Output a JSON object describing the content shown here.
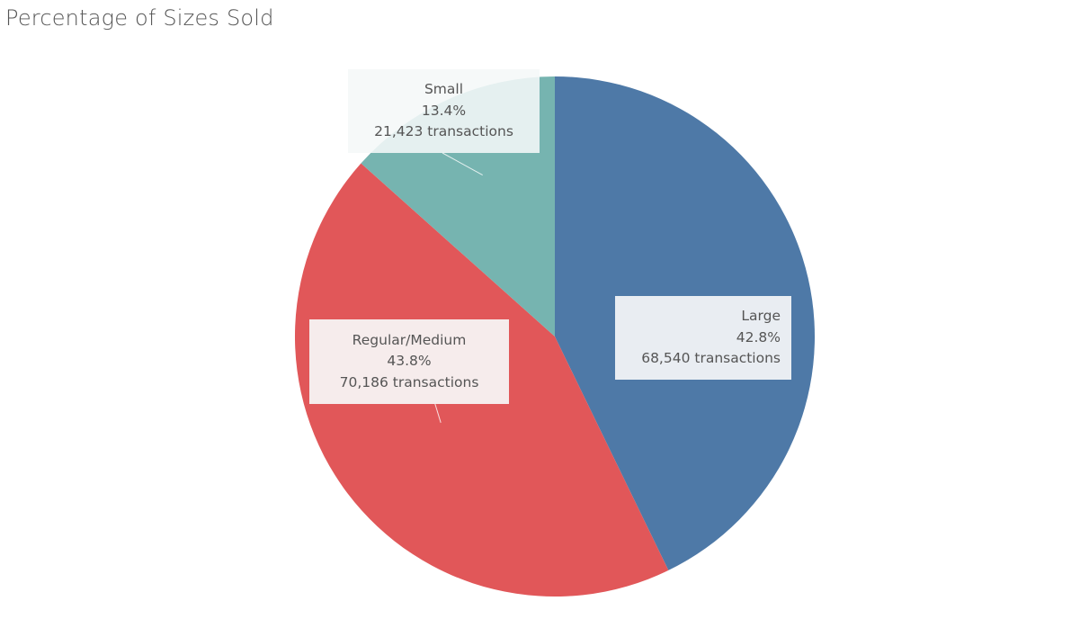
{
  "title": "Percentage of Sizes Sold",
  "chart_data": {
    "type": "pie",
    "title": "Percentage of Sizes Sold",
    "start_angle_deg": 0,
    "direction": "clockwise",
    "slices": [
      {
        "key": "large",
        "name": "Large",
        "percent": 42.8,
        "percent_label": "42.8%",
        "transactions": 68540,
        "value_label": "68,540 transactions",
        "color": "#4e79a7"
      },
      {
        "key": "regular",
        "name": "Regular/Medium",
        "percent": 43.8,
        "percent_label": "43.8%",
        "transactions": 70186,
        "value_label": "70,186 transactions",
        "color": "#e15759"
      },
      {
        "key": "small",
        "name": "Small",
        "percent": 13.4,
        "percent_label": "13.4%",
        "transactions": 21423,
        "value_label": "21,423 transactions",
        "color": "#76b4b0"
      }
    ]
  }
}
